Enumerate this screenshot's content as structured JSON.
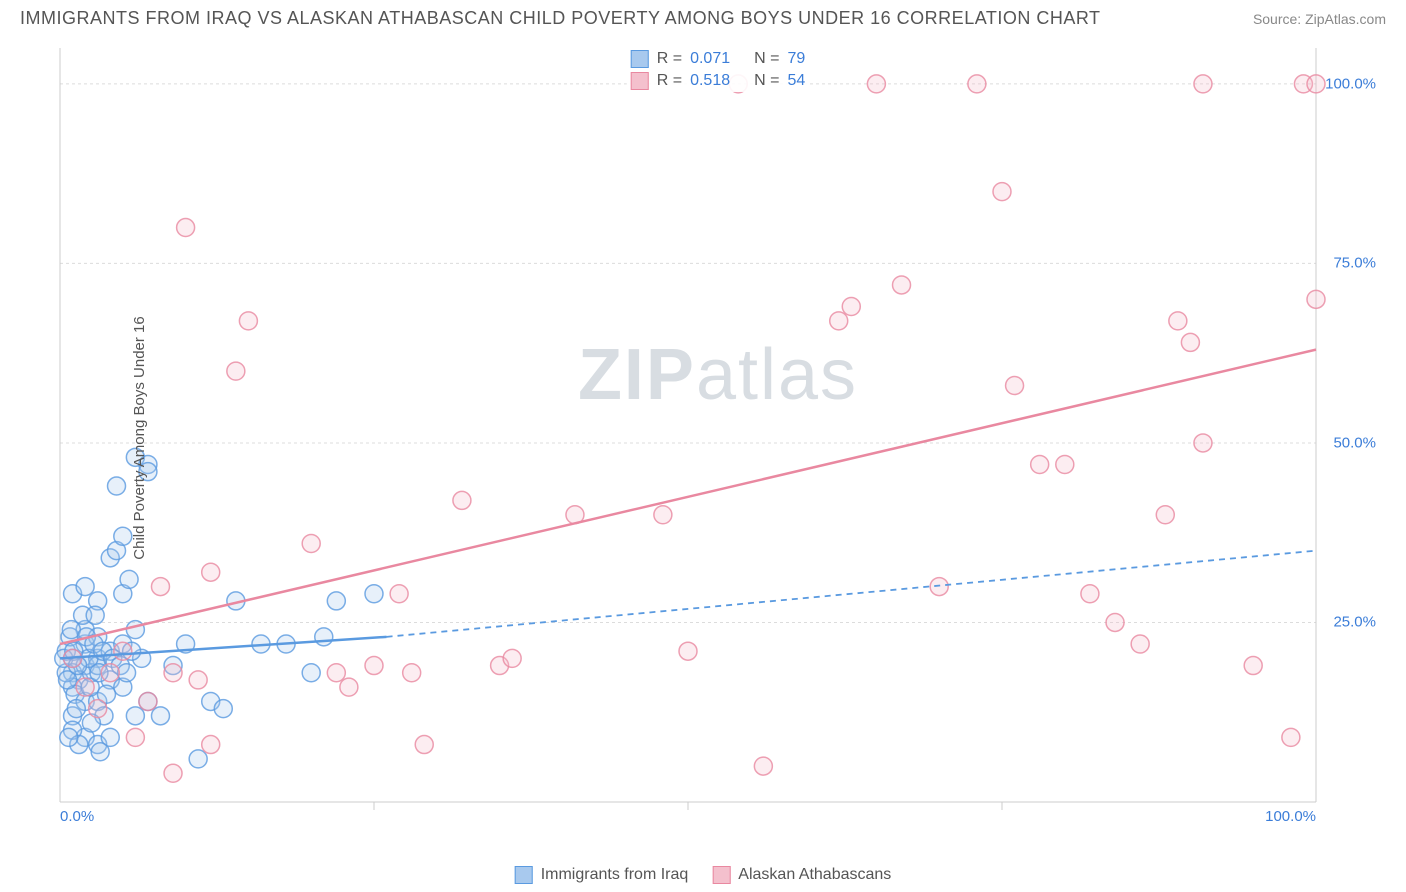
{
  "title": "IMMIGRANTS FROM IRAQ VS ALASKAN ATHABASCAN CHILD POVERTY AMONG BOYS UNDER 16 CORRELATION CHART",
  "source_label": "Source: ZipAtlas.com",
  "watermark_zip": "ZIP",
  "watermark_atlas": "atlas",
  "ylabel": "Child Poverty Among Boys Under 16",
  "chart": {
    "type": "scatter",
    "xlim": [
      0,
      100
    ],
    "ylim": [
      0,
      105
    ],
    "xtick_labels": [
      "0.0%",
      "100.0%"
    ],
    "xtick_positions": [
      0,
      100
    ],
    "xtick_minor_positions": [
      25,
      50,
      75
    ],
    "ytick_labels": [
      "25.0%",
      "50.0%",
      "75.0%",
      "100.0%"
    ],
    "ytick_positions": [
      25,
      50,
      75,
      100
    ],
    "background_color": "#ffffff",
    "grid_color": "#dcdcdc",
    "axis_color": "#cccccc",
    "tick_label_color": "#3b7dd8",
    "title_color": "#555555",
    "title_fontsize": 18,
    "label_fontsize": 15,
    "marker_radius": 9,
    "marker_fill_opacity": 0.28,
    "marker_stroke_width": 1.5,
    "trend_line_width_solid": 2.5,
    "trend_line_width_dash": 1.8,
    "dash_pattern": "6,5"
  },
  "series": [
    {
      "name": "Immigrants from Iraq",
      "legend_label": "Immigrants from Iraq",
      "color_stroke": "#5a9ae0",
      "color_fill": "#a8c9ee",
      "R_label": "R =",
      "R_value": "0.071",
      "N_label": "N =",
      "N_value": "79",
      "trend_solid": {
        "x1": 0,
        "y1": 20,
        "x2": 26,
        "y2": 23
      },
      "trend_dash": {
        "x1": 26,
        "y1": 23,
        "x2": 100,
        "y2": 35
      },
      "points": [
        [
          1,
          20
        ],
        [
          1,
          18
        ],
        [
          2,
          22
        ],
        [
          2,
          19
        ],
        [
          0.5,
          21
        ],
        [
          1.5,
          17
        ],
        [
          2,
          24
        ],
        [
          3,
          20
        ],
        [
          1,
          16
        ],
        [
          2.5,
          18
        ],
        [
          0.8,
          23
        ],
        [
          1.2,
          15
        ],
        [
          3,
          19
        ],
        [
          4,
          21
        ],
        [
          2,
          14
        ],
        [
          1,
          12
        ],
        [
          3,
          23
        ],
        [
          0.5,
          18
        ],
        [
          1.8,
          26
        ],
        [
          2.3,
          20
        ],
        [
          3,
          14
        ],
        [
          4,
          17
        ],
        [
          5,
          16
        ],
        [
          1,
          29
        ],
        [
          2,
          30
        ],
        [
          4,
          34
        ],
        [
          4.5,
          35
        ],
        [
          5,
          37
        ],
        [
          3,
          28
        ],
        [
          2,
          9
        ],
        [
          1,
          10
        ],
        [
          3,
          8
        ],
        [
          4,
          9
        ],
        [
          5,
          22
        ],
        [
          6,
          12
        ],
        [
          7,
          14
        ],
        [
          8,
          12
        ],
        [
          9,
          19
        ],
        [
          10,
          22
        ],
        [
          12,
          14
        ],
        [
          13,
          13
        ],
        [
          11,
          6
        ],
        [
          6,
          48
        ],
        [
          7,
          47
        ],
        [
          7,
          46
        ],
        [
          4.5,
          44
        ],
        [
          5,
          29
        ],
        [
          5.5,
          31
        ],
        [
          6,
          24
        ],
        [
          6.5,
          20
        ],
        [
          3.5,
          12
        ],
        [
          1.5,
          8
        ],
        [
          2.5,
          11
        ],
        [
          0.7,
          9
        ],
        [
          1.3,
          13
        ],
        [
          2.8,
          26
        ],
        [
          3.2,
          7
        ],
        [
          14,
          28
        ],
        [
          16,
          22
        ],
        [
          18,
          22
        ],
        [
          20,
          18
        ],
        [
          21,
          23
        ],
        [
          22,
          28
        ],
        [
          25,
          29
        ],
        [
          0.3,
          20
        ],
        [
          0.6,
          17
        ],
        [
          0.9,
          24
        ],
        [
          1.1,
          21
        ],
        [
          1.4,
          19
        ],
        [
          2.1,
          23
        ],
        [
          2.4,
          16
        ],
        [
          2.7,
          22
        ],
        [
          3.1,
          18
        ],
        [
          3.4,
          21
        ],
        [
          3.7,
          15
        ],
        [
          4.2,
          20
        ],
        [
          4.8,
          19
        ],
        [
          5.3,
          18
        ],
        [
          5.7,
          21
        ]
      ]
    },
    {
      "name": "Alaskan Athabascans",
      "legend_label": "Alaskan Athabascans",
      "color_stroke": "#e988a0",
      "color_fill": "#f4c0cd",
      "R_label": "R =",
      "R_value": "0.518",
      "N_label": "N =",
      "N_value": "54",
      "trend_solid": {
        "x1": 0,
        "y1": 22,
        "x2": 100,
        "y2": 63
      },
      "trend_dash": null,
      "points": [
        [
          1,
          20
        ],
        [
          2,
          16
        ],
        [
          3,
          13
        ],
        [
          4,
          18
        ],
        [
          5,
          21
        ],
        [
          6,
          9
        ],
        [
          7,
          14
        ],
        [
          8,
          30
        ],
        [
          9,
          18
        ],
        [
          9,
          4
        ],
        [
          11,
          17
        ],
        [
          12,
          32
        ],
        [
          14,
          60
        ],
        [
          12,
          8
        ],
        [
          15,
          67
        ],
        [
          10,
          80
        ],
        [
          20,
          36
        ],
        [
          22,
          18
        ],
        [
          23,
          16
        ],
        [
          25,
          19
        ],
        [
          27,
          29
        ],
        [
          28,
          18
        ],
        [
          29,
          8
        ],
        [
          32,
          42
        ],
        [
          35,
          19
        ],
        [
          36,
          20
        ],
        [
          41,
          40
        ],
        [
          48,
          40
        ],
        [
          50,
          21
        ],
        [
          56,
          5
        ],
        [
          54,
          100
        ],
        [
          62,
          67
        ],
        [
          63,
          69
        ],
        [
          65,
          100
        ],
        [
          67,
          72
        ],
        [
          70,
          30
        ],
        [
          73,
          100
        ],
        [
          75,
          85
        ],
        [
          76,
          58
        ],
        [
          78,
          47
        ],
        [
          80,
          47
        ],
        [
          82,
          29
        ],
        [
          84,
          25
        ],
        [
          86,
          22
        ],
        [
          88,
          40
        ],
        [
          89,
          67
        ],
        [
          90,
          64
        ],
        [
          91,
          50
        ],
        [
          91,
          100
        ],
        [
          95,
          19
        ],
        [
          98,
          9
        ],
        [
          99,
          100
        ],
        [
          100,
          70
        ],
        [
          100,
          100
        ]
      ]
    }
  ],
  "legend_top": {
    "rows": [
      {
        "swatch_fill": "#a8c9ee",
        "swatch_stroke": "#5a9ae0"
      },
      {
        "swatch_fill": "#f4c0cd",
        "swatch_stroke": "#e988a0"
      }
    ]
  }
}
